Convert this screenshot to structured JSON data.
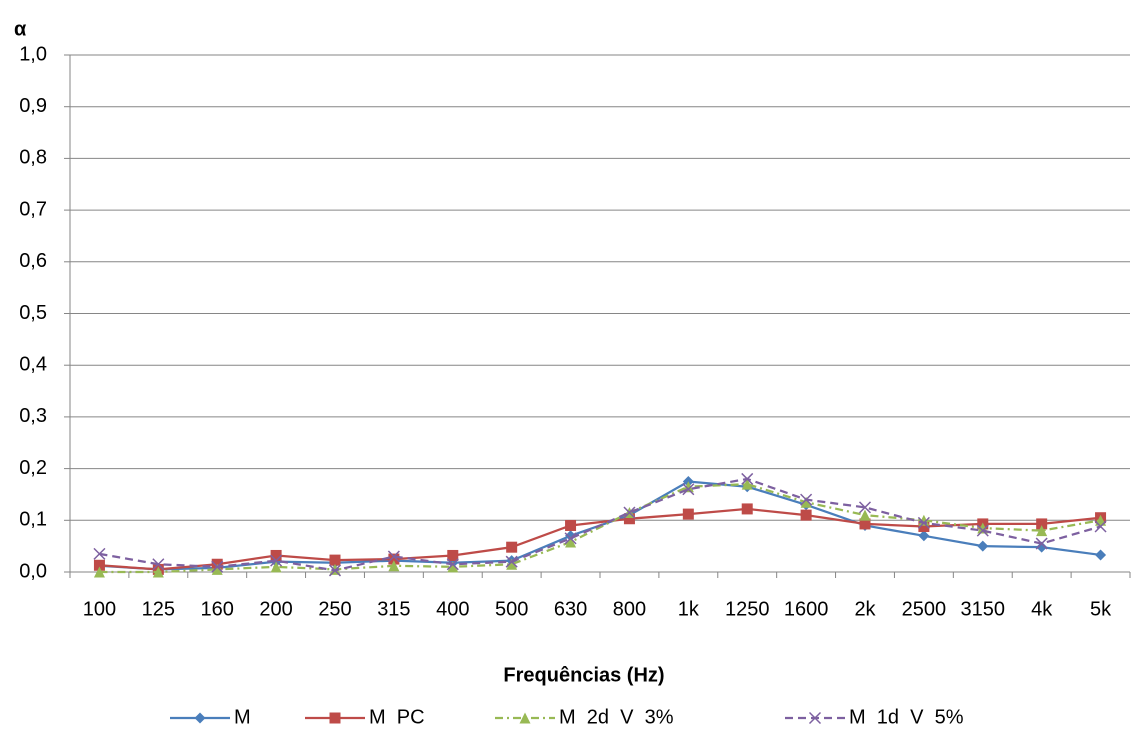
{
  "chart_data": {
    "type": "line",
    "y_label": "α",
    "x_label": "Frequências (Hz)",
    "categories": [
      "100",
      "125",
      "160",
      "200",
      "250",
      "315",
      "400",
      "500",
      "630",
      "800",
      "1k",
      "1250",
      "1600",
      "2k",
      "2500",
      "3150",
      "4k",
      "5k"
    ],
    "series": [
      {
        "name": "M",
        "color": "#4a7ebb",
        "marker": "diamond",
        "dash": "solid",
        "values": [
          0.012,
          0.005,
          0.008,
          0.02,
          0.018,
          0.022,
          0.018,
          0.022,
          0.07,
          0.11,
          0.175,
          0.165,
          0.13,
          0.09,
          0.07,
          0.05,
          0.048,
          0.033
        ]
      },
      {
        "name": "M  PC",
        "color": "#be4b48",
        "marker": "square",
        "dash": "solid",
        "values": [
          0.013,
          0.005,
          0.015,
          0.032,
          0.023,
          0.025,
          0.032,
          0.048,
          0.09,
          0.103,
          0.112,
          0.122,
          0.11,
          0.093,
          0.088,
          0.093,
          0.093,
          0.105
        ]
      },
      {
        "name": "M  2d  V  3%",
        "color": "#98b954",
        "marker": "triangle",
        "dash": "dashdot",
        "values": [
          0.0,
          0.0,
          0.005,
          0.01,
          0.005,
          0.012,
          0.01,
          0.015,
          0.058,
          0.115,
          0.165,
          0.17,
          0.135,
          0.11,
          0.1,
          0.085,
          0.08,
          0.1
        ]
      },
      {
        "name": "M  1d  V  5%",
        "color": "#7d60a0",
        "marker": "x",
        "dash": "dash",
        "values": [
          0.035,
          0.015,
          0.01,
          0.022,
          0.003,
          0.03,
          0.015,
          0.02,
          0.065,
          0.115,
          0.16,
          0.18,
          0.14,
          0.125,
          0.095,
          0.08,
          0.055,
          0.088
        ]
      }
    ],
    "ylim": [
      0,
      1
    ],
    "yticks": [
      {
        "value": 0,
        "label": "0,0"
      },
      {
        "value": 0.1,
        "label": "0,1"
      },
      {
        "value": 0.2,
        "label": "0,2"
      },
      {
        "value": 0.3,
        "label": "0,3"
      },
      {
        "value": 0.4,
        "label": "0,4"
      },
      {
        "value": 0.5,
        "label": "0,5"
      },
      {
        "value": 0.6,
        "label": "0,6"
      },
      {
        "value": 0.7,
        "label": "0,7"
      },
      {
        "value": 0.8,
        "label": "0,8"
      },
      {
        "value": 0.9,
        "label": "0,9"
      },
      {
        "value": 1,
        "label": "1,0"
      }
    ],
    "grid": true,
    "legend": "bottom"
  }
}
